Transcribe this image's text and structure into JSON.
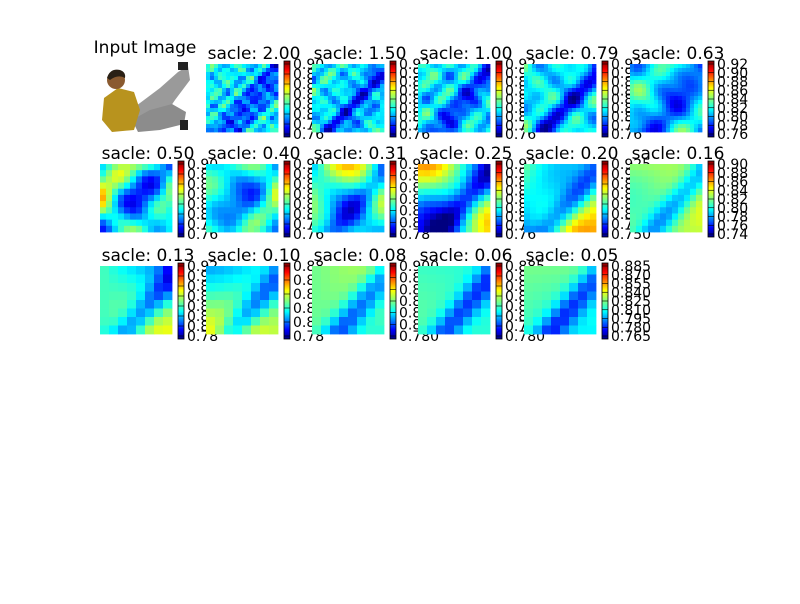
{
  "input_image": {
    "title": "Input Image",
    "colors": {
      "skin": "#8a5a30",
      "shirt": "#b8931e",
      "hair": "#2a2015",
      "pants": "#9a9a9a",
      "bg": "#ffffff"
    }
  },
  "chart_data": {
    "type": "heatmap",
    "colormap": "jet",
    "panels": [
      {
        "title": "sacle: 2.00",
        "colorbar_ticks": [
          "0.90",
          "0.88",
          "0.86",
          "0.84",
          "0.82",
          "0.80",
          "0.78",
          "0.76"
        ],
        "vmin": 0.76,
        "vmax": 0.9
      },
      {
        "title": "sacle: 1.50",
        "colorbar_ticks": [
          "0.92",
          "0.90",
          "0.88",
          "0.86",
          "0.84",
          "0.82",
          "0.80",
          "0.78",
          "0.76"
        ],
        "vmin": 0.76,
        "vmax": 0.92
      },
      {
        "title": "sacle: 1.00",
        "colorbar_ticks": [
          "0.92",
          "0.90",
          "0.88",
          "0.86",
          "0.84",
          "0.82",
          "0.80",
          "0.78",
          "0.76"
        ],
        "vmin": 0.76,
        "vmax": 0.92
      },
      {
        "title": "sacle: 0.79",
        "colorbar_ticks": [
          "0.92",
          "0.90",
          "0.88",
          "0.86",
          "0.84",
          "0.82",
          "0.80",
          "0.78",
          "0.76"
        ],
        "vmin": 0.76,
        "vmax": 0.92
      },
      {
        "title": "sacle: 0.63",
        "colorbar_ticks": [
          "0.92",
          "0.90",
          "0.88",
          "0.86",
          "0.84",
          "0.82",
          "0.80",
          "0.78",
          "0.76"
        ],
        "vmin": 0.76,
        "vmax": 0.92
      },
      {
        "title": "sacle: 0.50",
        "colorbar_ticks": [
          "0.90",
          "0.88",
          "0.86",
          "0.84",
          "0.82",
          "0.80",
          "0.78",
          "0.76"
        ],
        "vmin": 0.76,
        "vmax": 0.9
      },
      {
        "title": "sacle: 0.40",
        "colorbar_ticks": [
          "0.90",
          "0.88",
          "0.86",
          "0.84",
          "0.82",
          "0.80",
          "0.78",
          "0.76"
        ],
        "vmin": 0.76,
        "vmax": 0.9
      },
      {
        "title": "sacle: 0.31",
        "colorbar_ticks": [
          "0.90",
          "0.88",
          "0.86",
          "0.84",
          "0.82",
          "0.80",
          "0.78"
        ],
        "vmin": 0.78,
        "vmax": 0.9
      },
      {
        "title": "sacle: 0.25",
        "colorbar_ticks": [
          "0.92",
          "0.90",
          "0.88",
          "0.86",
          "0.84",
          "0.82",
          "0.80",
          "0.78",
          "0.76"
        ],
        "vmin": 0.76,
        "vmax": 0.92
      },
      {
        "title": "sacle: 0.20",
        "colorbar_ticks": [
          "0.925",
          "0.900",
          "0.875",
          "0.850",
          "0.825",
          "0.800",
          "0.775",
          "0.750"
        ],
        "vmin": 0.75,
        "vmax": 0.925
      },
      {
        "title": "sacle: 0.16",
        "colorbar_ticks": [
          "0.90",
          "0.88",
          "0.86",
          "0.84",
          "0.82",
          "0.80",
          "0.78",
          "0.76",
          "0.74"
        ],
        "vmin": 0.74,
        "vmax": 0.9
      },
      {
        "title": "sacle: 0.13",
        "colorbar_ticks": [
          "0.92",
          "0.90",
          "0.88",
          "0.86",
          "0.84",
          "0.82",
          "0.80",
          "0.78"
        ],
        "vmin": 0.78,
        "vmax": 0.92
      },
      {
        "title": "sacle: 0.10",
        "colorbar_ticks": [
          "0.88",
          "0.86",
          "0.84",
          "0.82",
          "0.80",
          "0.78"
        ],
        "vmin": 0.78,
        "vmax": 0.88
      },
      {
        "title": "sacle: 0.08",
        "colorbar_ticks": [
          "0.900",
          "0.880",
          "0.860",
          "0.840",
          "0.820",
          "0.800",
          "0.780"
        ],
        "vmin": 0.78,
        "vmax": 0.9
      },
      {
        "title": "sacle: 0.06",
        "colorbar_ticks": [
          "0.885",
          "0.870",
          "0.855",
          "0.840",
          "0.825",
          "0.810",
          "0.795",
          "0.780"
        ],
        "vmin": 0.78,
        "vmax": 0.885
      },
      {
        "title": "sacle: 0.05",
        "colorbar_ticks": [
          "0.885",
          "0.870",
          "0.855",
          "0.840",
          "0.825",
          "0.810",
          "0.795",
          "0.780",
          "0.765"
        ],
        "vmin": 0.765,
        "vmax": 0.885
      }
    ]
  }
}
